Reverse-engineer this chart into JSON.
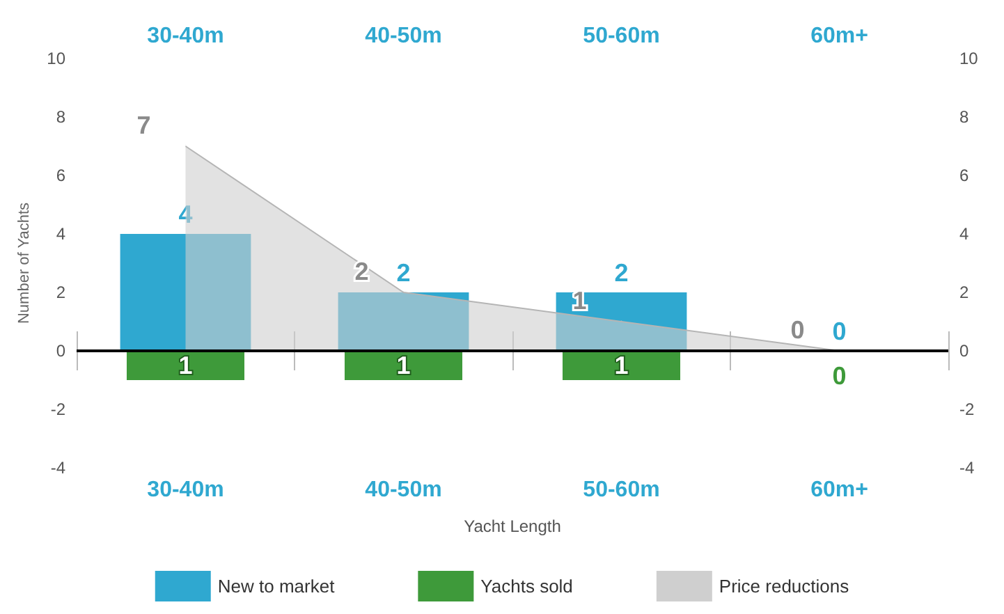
{
  "chart_data": {
    "type": "bar",
    "xlabel": "Yacht Length",
    "ylabel": "Number of Yachts",
    "categories": [
      "30-40m",
      "40-50m",
      "50-60m",
      "60m+"
    ],
    "series": [
      {
        "name": "New to market",
        "color": "#2fa8d0",
        "values": [
          4,
          2,
          2,
          0
        ],
        "value_labels": [
          "4",
          "2",
          "2",
          "0"
        ]
      },
      {
        "name": "Yachts sold",
        "color": "#3e9a3a",
        "values": [
          1,
          1,
          1,
          0
        ],
        "base": [
          -1,
          -1,
          -1,
          null
        ],
        "value_labels": [
          "1",
          "1",
          "1",
          "0"
        ]
      },
      {
        "name": "Price reductions",
        "type": "area",
        "color": "#cfcfcf",
        "values": [
          7,
          2,
          1,
          0
        ],
        "value_labels": [
          "7",
          "2",
          "1",
          "0"
        ]
      }
    ],
    "ylim": [
      -4,
      10
    ],
    "yticks": [
      -4,
      -2,
      0,
      2,
      4,
      6,
      8,
      10
    ],
    "y2lim": [
      -4,
      10
    ],
    "y2ticks": [
      -4,
      -2,
      0,
      2,
      4,
      6,
      8,
      10
    ],
    "ref_lines": [
      {
        "axis": "y",
        "value": 0,
        "color": "#000000"
      }
    ],
    "grid": false,
    "legend": "bottom"
  }
}
